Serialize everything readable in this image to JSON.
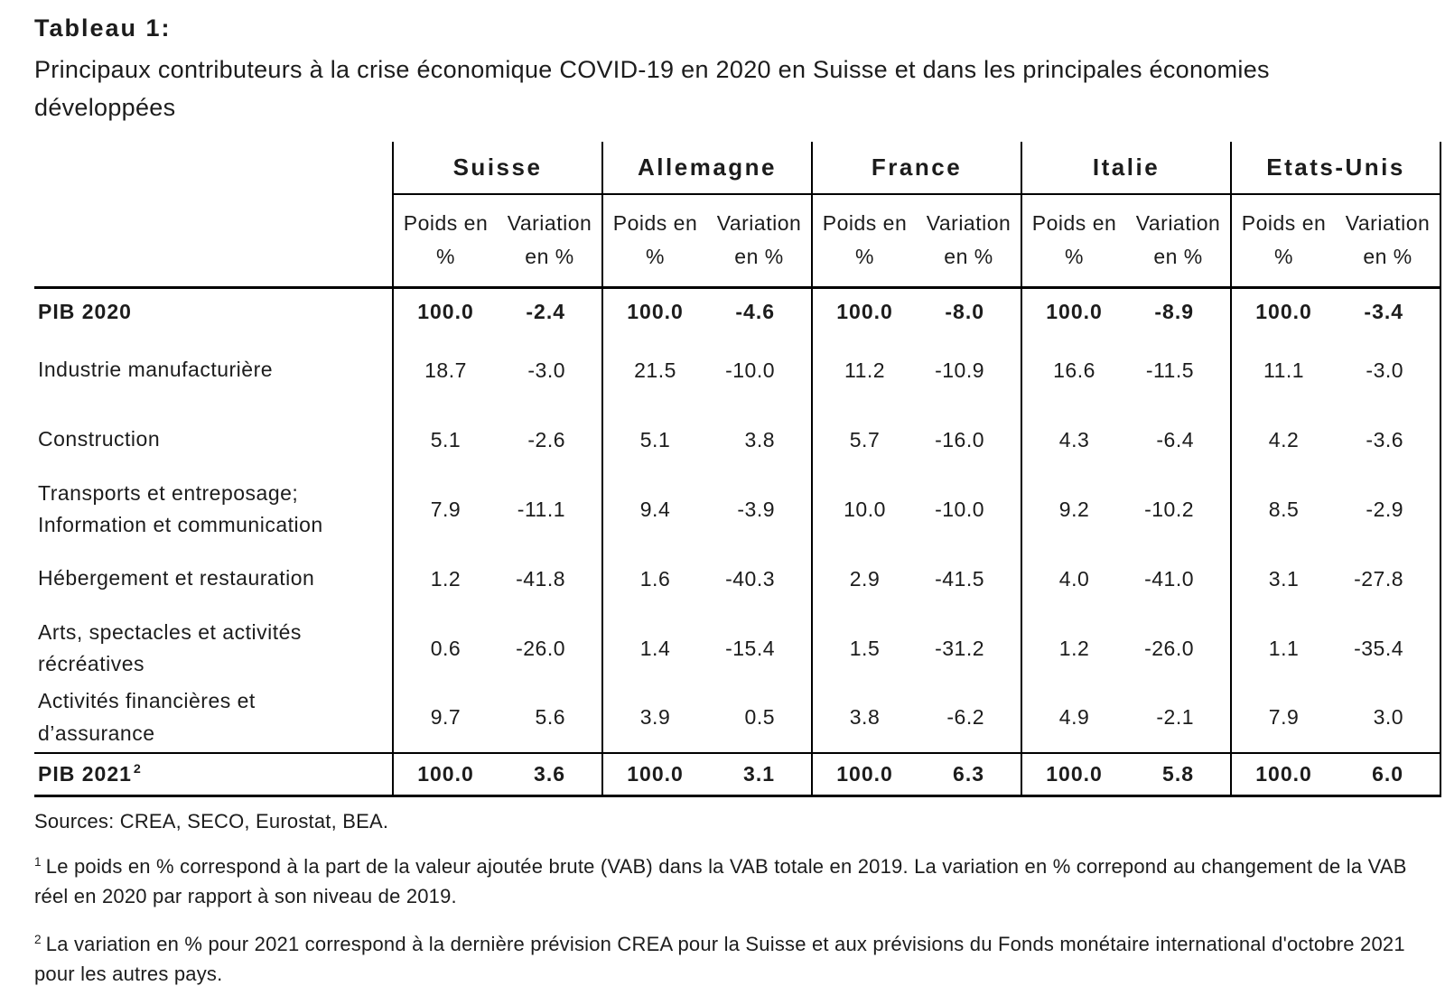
{
  "colors": {
    "background": "#ffffff",
    "text": "#1c1c1c",
    "border": "#000000"
  },
  "header": {
    "label": "Tableau 1:",
    "title": "Principaux contributeurs à la crise économique COVID-19 en 2020 en Suisse et dans les principales économies développées"
  },
  "table": {
    "countries": [
      "Suisse",
      "Allemagne",
      "France",
      "Italie",
      "Etats-Unis"
    ],
    "subheaders": {
      "weight": "Poids en\n%",
      "variation": "Variation\nen %"
    },
    "rows": [
      {
        "label": "PIB 2020",
        "emphasis": true,
        "cells": [
          [
            "100.0",
            "-2.4"
          ],
          [
            "100.0",
            "-4.6"
          ],
          [
            "100.0",
            "-8.0"
          ],
          [
            "100.0",
            "-8.9"
          ],
          [
            "100.0",
            "-3.4"
          ]
        ]
      },
      {
        "label": "Industrie manufacturière",
        "emphasis": false,
        "cells": [
          [
            "18.7",
            "-3.0"
          ],
          [
            "21.5",
            "-10.0"
          ],
          [
            "11.2",
            "-10.9"
          ],
          [
            "16.6",
            "-11.5"
          ],
          [
            "11.1",
            "-3.0"
          ]
        ]
      },
      {
        "label": "Construction",
        "emphasis": false,
        "cells": [
          [
            "5.1",
            "-2.6"
          ],
          [
            "5.1",
            "3.8"
          ],
          [
            "5.7",
            "-16.0"
          ],
          [
            "4.3",
            "-6.4"
          ],
          [
            "4.2",
            "-3.6"
          ]
        ]
      },
      {
        "label": "Transports et entreposage;\nInformation et communication",
        "emphasis": false,
        "cells": [
          [
            "7.9",
            "-11.1"
          ],
          [
            "9.4",
            "-3.9"
          ],
          [
            "10.0",
            "-10.0"
          ],
          [
            "9.2",
            "-10.2"
          ],
          [
            "8.5",
            "-2.9"
          ]
        ]
      },
      {
        "label": "Hébergement et restauration",
        "emphasis": false,
        "cells": [
          [
            "1.2",
            "-41.8"
          ],
          [
            "1.6",
            "-40.3"
          ],
          [
            "2.9",
            "-41.5"
          ],
          [
            "4.0",
            "-41.0"
          ],
          [
            "3.1",
            "-27.8"
          ]
        ]
      },
      {
        "label": "Arts, spectacles et activités\nrécréatives",
        "emphasis": false,
        "cells": [
          [
            "0.6",
            "-26.0"
          ],
          [
            "1.4",
            "-15.4"
          ],
          [
            "1.5",
            "-31.2"
          ],
          [
            "1.2",
            "-26.0"
          ],
          [
            "1.1",
            "-35.4"
          ]
        ]
      },
      {
        "label": "Activités financières et\nd’assurance",
        "emphasis": false,
        "cells": [
          [
            "9.7",
            "5.6"
          ],
          [
            "3.9",
            "0.5"
          ],
          [
            "3.8",
            "-6.2"
          ],
          [
            "4.9",
            "-2.1"
          ],
          [
            "7.9",
            "3.0"
          ]
        ]
      },
      {
        "label": "PIB 2021",
        "label_sup": "2",
        "emphasis": true,
        "cells": [
          [
            "100.0",
            "3.6"
          ],
          [
            "100.0",
            "3.1"
          ],
          [
            "100.0",
            "6.3"
          ],
          [
            "100.0",
            "5.8"
          ],
          [
            "100.0",
            "6.0"
          ]
        ]
      }
    ]
  },
  "footer": {
    "sources": "Sources: CREA, SECO, Eurostat, BEA.",
    "footnotes": [
      {
        "marker": "1",
        "text": "Le poids en % correspond à la part de la valeur ajoutée brute (VAB) dans la VAB totale en 2019. La variation en % correpond au changement de la VAB réel en 2020 par rapport à son niveau de 2019."
      },
      {
        "marker": "2",
        "text": "La variation en % pour 2021 correspond à la dernière prévision CREA pour la Suisse et aux prévisions du Fonds monétaire international d'octobre 2021 pour les autres pays."
      }
    ]
  }
}
